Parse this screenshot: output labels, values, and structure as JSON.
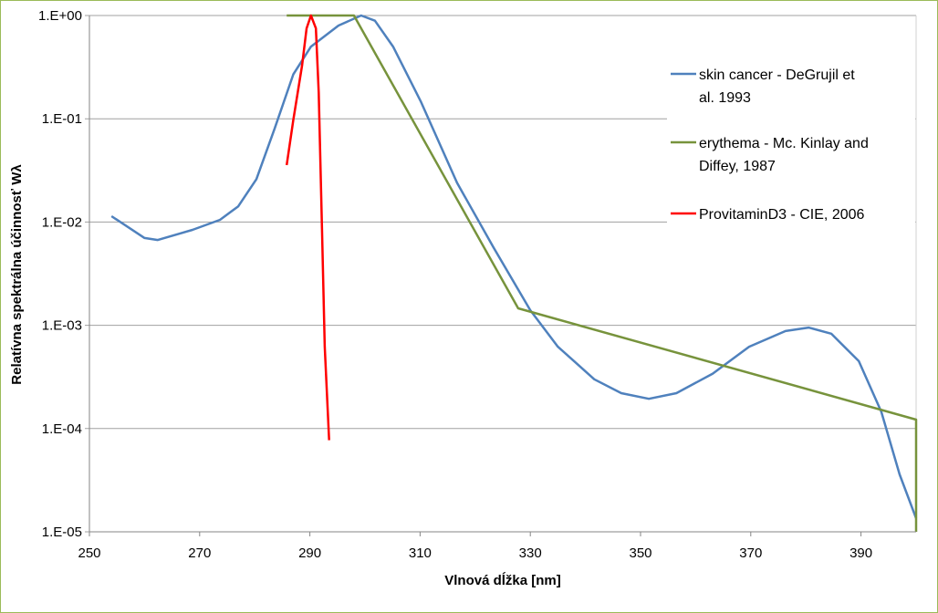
{
  "chart_data": {
    "type": "line",
    "title": "",
    "xlabel": "Vlnová dĺžka [nm]",
    "ylabel": "Relatívna spektrálna účinnosť Wλ",
    "xlim": [
      250,
      400
    ],
    "ylim": [
      1e-05,
      1
    ],
    "yscale": "log",
    "xticks": [
      250,
      270,
      290,
      310,
      330,
      350,
      370,
      390
    ],
    "yticks": [
      1,
      0.1,
      0.01,
      0.001,
      0.0001,
      1e-05
    ],
    "ytick_labels": [
      "1.E+00",
      "1.E-01",
      "1.E-02",
      "1.E-03",
      "1.E-04",
      "1.E-05"
    ],
    "grid": "horizontal",
    "legend_position": "right",
    "series": [
      {
        "name": "skin cancer - DeGrujil et al. 1993",
        "legend_lines": [
          " skin cancer - DeGrujil et",
          "al. 1993"
        ],
        "color": "#4f81bd",
        "x": [
          254,
          260,
          262.4,
          268.7,
          273.7,
          277,
          280.3,
          283.6,
          287,
          290.2,
          295.2,
          299.3,
          301.8,
          305.1,
          310.1,
          316.7,
          323.3,
          330,
          335,
          341.6,
          346.5,
          351.5,
          356.5,
          363.1,
          369.7,
          376.3,
          380.5,
          384.6,
          389.6,
          393.7,
          397,
          400
        ],
        "y": [
          0.0114,
          0.007,
          0.0067,
          0.0084,
          0.0105,
          0.0142,
          0.026,
          0.08,
          0.27,
          0.5,
          0.8,
          1.0,
          0.89,
          0.5,
          0.148,
          0.024,
          0.0057,
          0.0014,
          0.00062,
          0.0003,
          0.00022,
          0.000194,
          0.00022,
          0.00034,
          0.00062,
          0.00088,
          0.00095,
          0.00083,
          0.00045,
          0.000145,
          3.6e-05,
          1.35e-05
        ]
      },
      {
        "name": "erythema - Mc. Kinlay and Diffey, 1987",
        "legend_lines": [
          "erythema  - Mc. Kinlay and",
          "Diffey, 1987"
        ],
        "color": "#77933c",
        "x": [
          285.8,
          298,
          327.8,
          400,
          400
        ],
        "y": [
          1.0,
          1.0,
          0.00146,
          0.000122,
          1e-05
        ]
      },
      {
        "name": "ProvitaminD3 - CIE, 2006",
        "legend_lines": [
          "ProvitaminD3 - CIE, 2006"
        ],
        "color": "#ff0000",
        "x": [
          285.8,
          287,
          288.6,
          289.4,
          290.2,
          291.1,
          291.6,
          292.2,
          292.7,
          293.5
        ],
        "y": [
          0.0356,
          0.098,
          0.33,
          0.75,
          1.0,
          0.75,
          0.18,
          0.0085,
          0.00062,
          7.7e-05
        ]
      }
    ]
  }
}
